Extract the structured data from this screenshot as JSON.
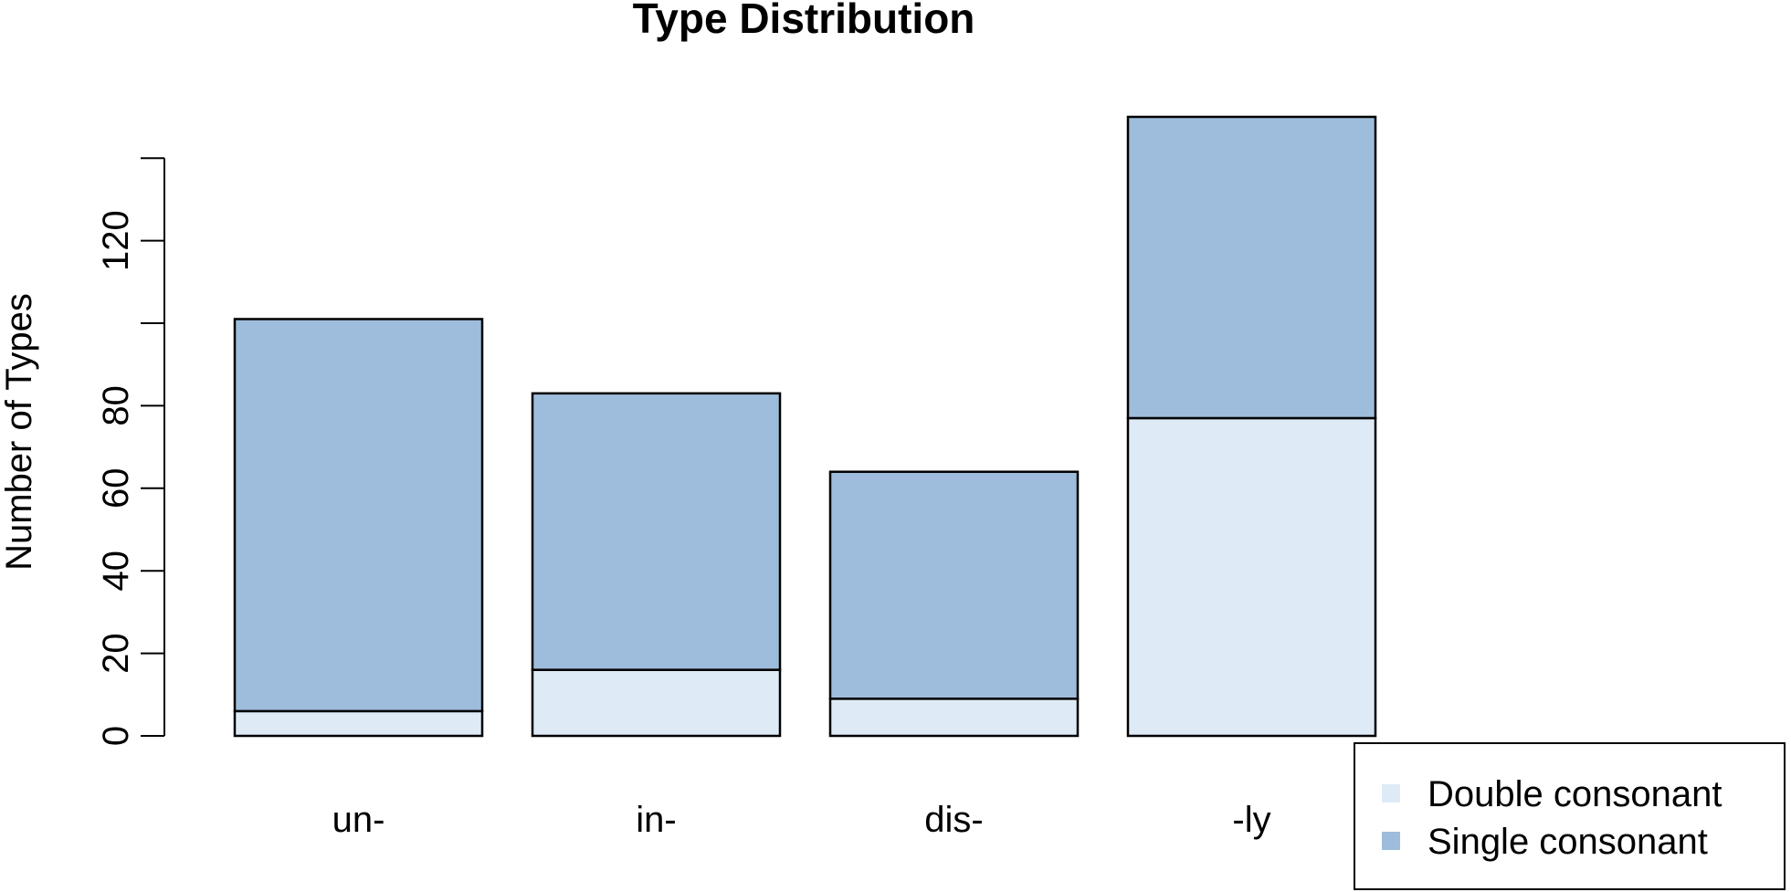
{
  "chart_data": {
    "type": "bar",
    "stacked": true,
    "title": "Type Distribution",
    "xlabel": "",
    "ylabel": "Number of Types",
    "categories": [
      "un-",
      "in-",
      "dis-",
      "-ly"
    ],
    "series": [
      {
        "name": "Double consonant",
        "values": [
          6,
          16,
          9,
          77
        ],
        "color": "#deebf7"
      },
      {
        "name": "Single consonant",
        "values": [
          95,
          67,
          55,
          73
        ],
        "color": "#9ebcdb"
      }
    ],
    "yticks": [
      0,
      20,
      40,
      60,
      80,
      100,
      120,
      140
    ],
    "ytick_labels": [
      "0",
      "20",
      "40",
      "60",
      "80",
      "",
      "120",
      ""
    ],
    "ylim": [
      0,
      150
    ],
    "grid": false,
    "legend_position": "bottom-right"
  }
}
